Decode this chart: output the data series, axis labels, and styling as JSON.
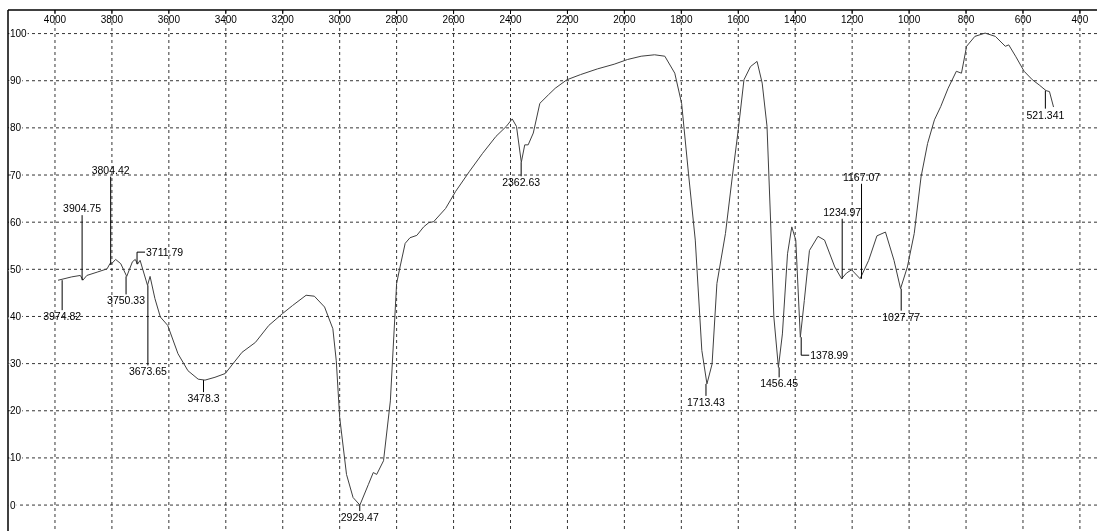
{
  "chart_data": {
    "type": "line",
    "xlim": [
      4165,
      340
    ],
    "ylim": [
      -5.5,
      105
    ],
    "xticks": [
      4000,
      3800,
      3600,
      3400,
      3200,
      3000,
      2800,
      2600,
      2400,
      2200,
      2000,
      1800,
      1600,
      1400,
      1200,
      1000,
      800,
      600,
      400
    ],
    "yticks": [
      0,
      10,
      20,
      30,
      40,
      50,
      60,
      70,
      80,
      90,
      100
    ],
    "grid": true,
    "marker": "none",
    "line_style": "solid",
    "series": [
      {
        "color": "#404040",
        "x": [
          3988,
          3941,
          3911,
          3902,
          3888,
          3852,
          3817,
          3807,
          3804,
          3787,
          3769,
          3748,
          3728,
          3718,
          3710,
          3701,
          3675,
          3666,
          3649,
          3630,
          3604,
          3568,
          3533,
          3497,
          3473,
          3438,
          3402,
          3343,
          3296,
          3249,
          3201,
          3166,
          3118,
          3089,
          3053,
          3024,
          3012,
          3000,
          2976,
          2953,
          2929,
          2899,
          2882,
          2870,
          2846,
          2822,
          2800,
          2788,
          2770,
          2753,
          2729,
          2705,
          2687,
          2670,
          2628,
          2593,
          2545,
          2498,
          2451,
          2415,
          2394,
          2379,
          2362,
          2350,
          2338,
          2320,
          2297,
          2267,
          2243,
          2202,
          2154,
          2095,
          2036,
          1989,
          1941,
          1894,
          1858,
          1823,
          1799,
          1775,
          1751,
          1728,
          1710,
          1692,
          1675,
          1645,
          1621,
          1600,
          1580,
          1557,
          1534,
          1516,
          1499,
          1487,
          1475,
          1459,
          1445,
          1427,
          1412,
          1398,
          1382,
          1368,
          1350,
          1320,
          1297,
          1261,
          1237,
          1220,
          1202,
          1172,
          1142,
          1113,
          1083,
          1053,
          1030,
          1006,
          982,
          958,
          935,
          911,
          889,
          863,
          834,
          816,
          798,
          769,
          733,
          697,
          662,
          650,
          626,
          596,
          567,
          543,
          519,
          507,
          493
        ],
        "values": [
          47.7,
          48.4,
          48.7,
          47.7,
          48.7,
          49.4,
          50.1,
          51.2,
          51.0,
          52.1,
          51.2,
          48.5,
          51.6,
          52.1,
          51.1,
          51.9,
          46.6,
          48.5,
          43.8,
          39.9,
          38.1,
          32.1,
          28.5,
          26.7,
          26.5,
          27.1,
          27.9,
          32.4,
          34.5,
          38.1,
          40.6,
          42.3,
          44.5,
          44.3,
          42.0,
          37.4,
          30.6,
          18.6,
          6.5,
          1.6,
          0,
          4.4,
          6.9,
          6.5,
          9.4,
          22.1,
          47,
          50.5,
          55.5,
          56.7,
          57.2,
          59.0,
          59.9,
          60.1,
          62.9,
          66.5,
          70.7,
          74.6,
          78.2,
          80.3,
          81.9,
          80.3,
          72.7,
          76.4,
          76.4,
          78.9,
          85.2,
          87.0,
          88.4,
          90.2,
          91.3,
          92.5,
          93.5,
          94.5,
          95.2,
          95.5,
          95.2,
          91.6,
          85.2,
          70.4,
          56.2,
          32.8,
          25.7,
          29.9,
          47.0,
          57.6,
          69.6,
          79.6,
          90.2,
          93.0,
          94.1,
          89.5,
          80.3,
          61.1,
          39.9,
          29.2,
          36.3,
          53.3,
          59.0,
          56.2,
          35.6,
          43.4,
          54.0,
          57.0,
          56.2,
          50.5,
          48.0,
          49.2,
          49.9,
          48.0,
          51.9,
          57.1,
          57.9,
          51.9,
          45.9,
          50.5,
          57.6,
          69.6,
          76.7,
          81.7,
          84.5,
          88.4,
          92.0,
          91.6,
          97.3,
          99.4,
          100.1,
          99.4,
          97.3,
          97.6,
          95.2,
          92.0,
          90.2,
          89.1,
          87.9,
          87.7,
          84.5
        ]
      }
    ],
    "annotations": [
      {
        "text": "3974.82",
        "x": 3974.82,
        "y": 47.7
      },
      {
        "text": "3904.75",
        "x": 3904.75,
        "y": 47.7
      },
      {
        "text": "3804.42",
        "x": 3804.42,
        "y": 51.0
      },
      {
        "text": "3750.33",
        "x": 3750.33,
        "y": 48.5
      },
      {
        "text": "3711.79",
        "x": 3711.79,
        "y": 51.1
      },
      {
        "text": "3673.65",
        "x": 3673.65,
        "y": 46.6
      },
      {
        "text": "3478.3",
        "x": 3478.3,
        "y": 26.5
      },
      {
        "text": "2929.47",
        "x": 2929.47,
        "y": 0
      },
      {
        "text": "2362.63",
        "x": 2362.63,
        "y": 72.7
      },
      {
        "text": "1713.43",
        "x": 1713.43,
        "y": 25.7
      },
      {
        "text": "1456.45",
        "x": 1456.45,
        "y": 29.2
      },
      {
        "text": "1378.99",
        "x": 1378.99,
        "y": 35.6
      },
      {
        "text": "1234.97",
        "x": 1234.97,
        "y": 48.0
      },
      {
        "text": "1167.07",
        "x": 1167.07,
        "y": 48.0
      },
      {
        "text": "1027.77",
        "x": 1027.77,
        "y": 45.9
      },
      {
        "text": "521.341",
        "x": 521.341,
        "y": 87.9
      }
    ]
  }
}
